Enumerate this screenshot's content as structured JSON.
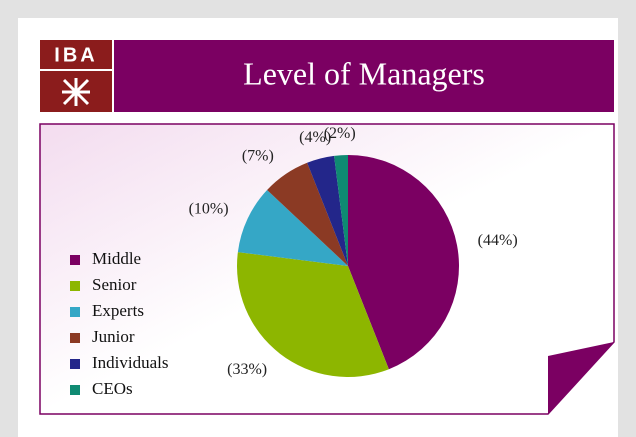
{
  "logo": {
    "text": "IBA"
  },
  "chart_data": {
    "type": "pie",
    "title": "Level of Managers",
    "categories": [
      "Middle",
      "Senior",
      "Experts",
      "Junior",
      "Individuals",
      "CEOs"
    ],
    "values": [
      44,
      33,
      10,
      7,
      4,
      2
    ],
    "value_labels": [
      "(44%)",
      "(33%)",
      "(10%)",
      "(7%)",
      "(4%)",
      "(2%)"
    ],
    "colors": [
      "#7b0062",
      "#8db600",
      "#35a7c6",
      "#8b3a24",
      "#23268a",
      "#0f8a72"
    ],
    "legend": "left"
  }
}
